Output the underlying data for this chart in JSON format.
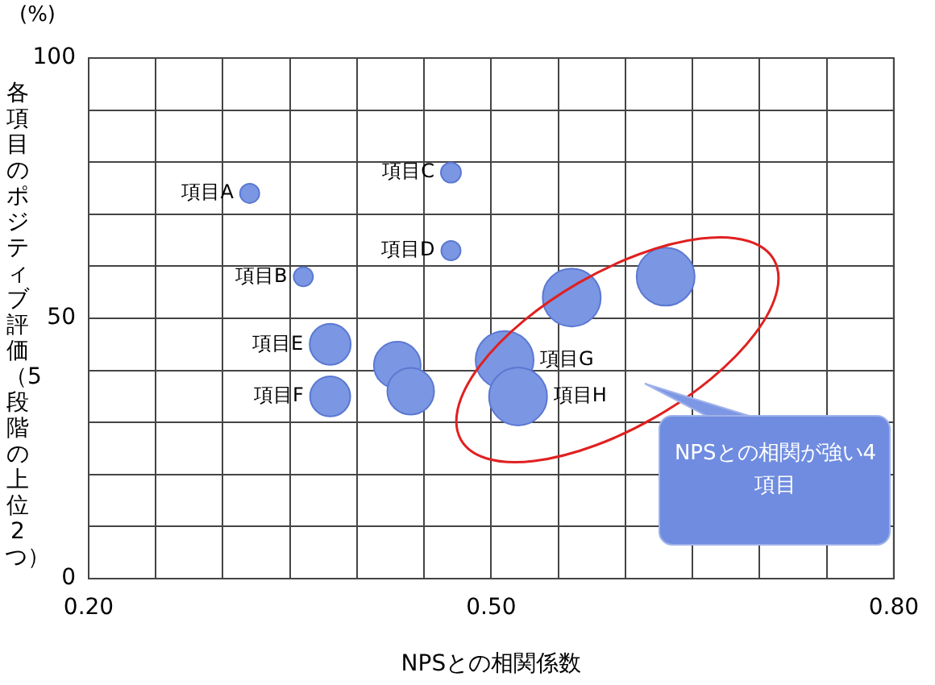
{
  "chart_data": {
    "type": "bubble",
    "xlabel": "NPSとの相関係数",
    "ylabel": "各項目のポジティブ評価（5段階の上位2つ）",
    "x": [
      0.32,
      0.36,
      0.47,
      0.47,
      0.38,
      0.38,
      0.43,
      0.44,
      0.51,
      0.52,
      0.56,
      0.63
    ],
    "values": [
      74,
      58,
      78,
      63,
      45,
      35,
      41,
      36,
      42,
      35,
      54,
      58
    ],
    "sizes": [
      0.11,
      0.11,
      0.12,
      0.11,
      0.5,
      0.48,
      0.65,
      0.65,
      1,
      1,
      1,
      1
    ],
    "color": "#7b96e3",
    "xlim": [
      0.2,
      0.8
    ],
    "xticks": [
      {
        "value": 0.2,
        "label": "0.20"
      },
      {
        "value": 0.25,
        "label": null
      },
      {
        "value": 0.3,
        "label": null
      },
      {
        "value": 0.35,
        "label": null
      },
      {
        "value": 0.4,
        "label": null
      },
      {
        "value": 0.45,
        "label": null
      },
      {
        "value": 0.5,
        "label": "0.50"
      },
      {
        "value": 0.55,
        "label": null
      },
      {
        "value": 0.6,
        "label": null
      },
      {
        "value": 0.65,
        "label": null
      },
      {
        "value": 0.7,
        "label": null
      },
      {
        "value": 0.75,
        "label": null
      },
      {
        "value": 0.8,
        "label": "0.80"
      }
    ],
    "ylim": [
      0,
      100
    ],
    "yticks": [
      0,
      {
        "value": 10,
        "label": null
      },
      {
        "value": 20,
        "label": null
      },
      {
        "value": 30,
        "label": null
      },
      {
        "value": 40,
        "label": null
      },
      50,
      {
        "value": 60,
        "label": null
      },
      {
        "value": 70,
        "label": null
      },
      {
        "value": 80,
        "label": null
      },
      {
        "value": 90,
        "label": null
      },
      100
    ],
    "grid": true,
    "annotations": [
      "(%)",
      {
        "text": "項目A",
        "x": 0.32,
        "y": 74
      },
      {
        "text": "項目B",
        "x": 0.36,
        "y": 58
      },
      {
        "text": "項目C",
        "x": 0.47,
        "y": 78
      },
      {
        "text": "項目D",
        "x": 0.47,
        "y": 63
      },
      {
        "text": "項目E",
        "x": 0.38,
        "y": 45
      },
      {
        "text": "項目F",
        "x": 0.38,
        "y": 35
      },
      {
        "text": "項目G",
        "x": 0.51,
        "y": 42
      },
      {
        "text": "項目H",
        "x": 0.52,
        "y": 35
      },
      "NPSとの相関が強い4項目"
    ]
  }
}
